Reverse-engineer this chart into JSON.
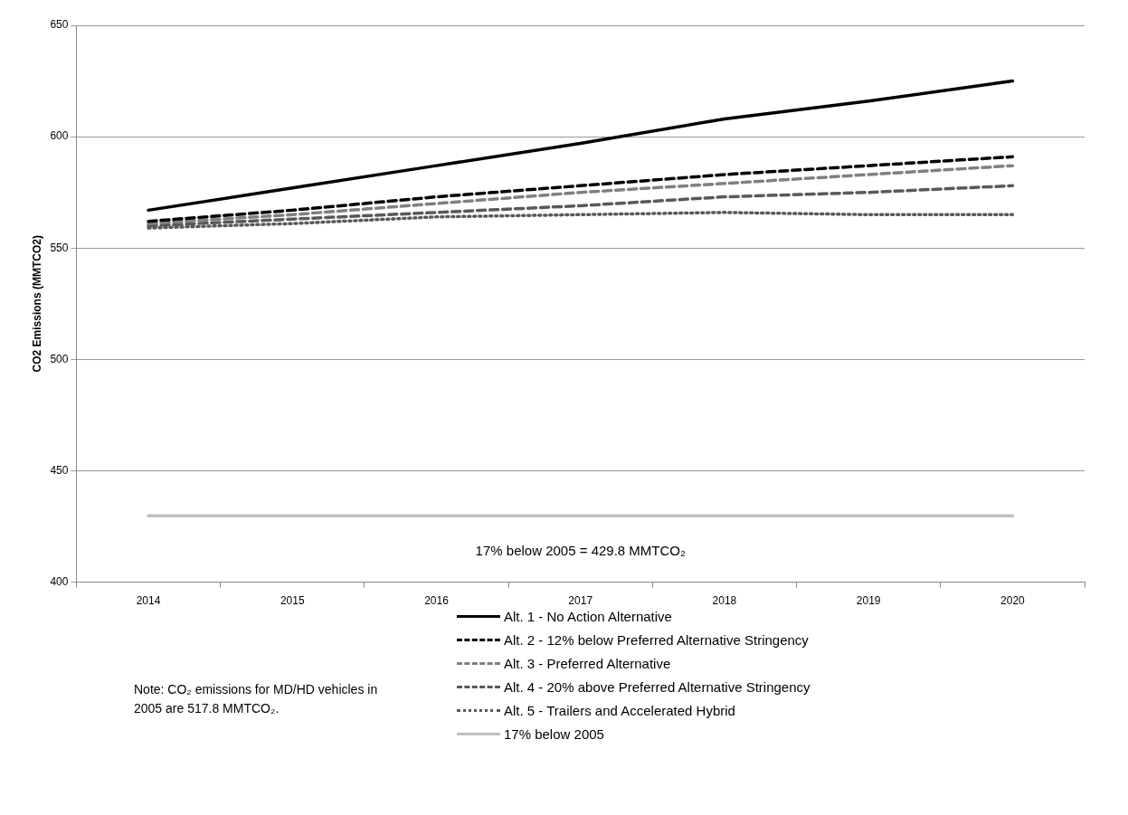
{
  "chart_data": {
    "type": "line",
    "ylabel": "CO2 Emissions (MMTCO2)",
    "categories": [
      "2014",
      "2015",
      "2016",
      "2017",
      "2018",
      "2019",
      "2020"
    ],
    "series": [
      {
        "name": "Alt. 1 - No Action Alternative",
        "color": "#000000",
        "line_style": "solid",
        "values": [
          567,
          577,
          587,
          597,
          608,
          616,
          625
        ]
      },
      {
        "name": "Alt. 2 - 12% below Preferred Alternative Stringency",
        "color": "#000000",
        "line_style": "dashed",
        "values": [
          562,
          567,
          573,
          578,
          583,
          587,
          591
        ]
      },
      {
        "name": "Alt. 3 - Preferred Alternative",
        "color": "#808080",
        "line_style": "dashed",
        "values": [
          561,
          565,
          570,
          575,
          579,
          583,
          587
        ]
      },
      {
        "name": "Alt. 4 - 20% above Preferred Alternative Stringency",
        "color": "#595959",
        "line_style": "dashed",
        "values": [
          560,
          563,
          566,
          569,
          573,
          575,
          578
        ]
      },
      {
        "name": "Alt. 5 - Trailers and Accelerated Hybrid",
        "color": "#595959",
        "line_style": "dotted",
        "values": [
          559,
          561,
          564,
          565,
          566,
          565,
          565
        ]
      },
      {
        "name": "17% below 2005",
        "color": "#bfbfbf",
        "line_style": "solid",
        "values": [
          429.8,
          429.8,
          429.8,
          429.8,
          429.8,
          429.8,
          429.8
        ]
      }
    ],
    "ylim": [
      400,
      650
    ],
    "yticks": [
      400,
      450,
      500,
      550,
      600,
      650
    ],
    "grid": "y",
    "legend": "bottom",
    "marker": "none",
    "annotations": [
      "17% below 2005 = 429.8 MMTCO₂",
      "Note: CO₂ emissions for MD/HD vehicles in 2005 are 517.8 MMTCO₂."
    ]
  }
}
